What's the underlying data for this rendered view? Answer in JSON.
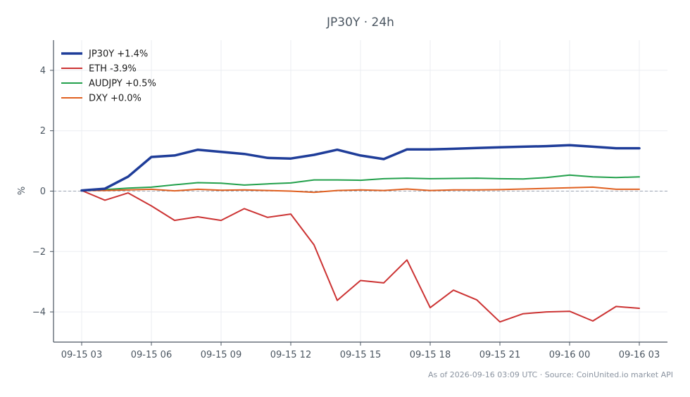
{
  "chart_data": {
    "type": "line",
    "title": "JP30Y · 24h",
    "ylabel": "%",
    "xlabel": "",
    "ylim": [
      -5,
      5
    ],
    "yticks": [
      -4,
      -2,
      0,
      2,
      4
    ],
    "ytick_labels": [
      "−4",
      "−2",
      "0",
      "2",
      "4"
    ],
    "xtick_labels": [
      "09-15 03",
      "09-15 06",
      "09-15 09",
      "09-15 12",
      "09-15 15",
      "09-15 18",
      "09-15 21",
      "09-16 00",
      "09-16 03"
    ],
    "x": [
      "09-15 03",
      "09-15 04",
      "09-15 05",
      "09-15 06",
      "09-15 07",
      "09-15 08",
      "09-15 09",
      "09-15 10",
      "09-15 11",
      "09-15 12",
      "09-15 13",
      "09-15 14",
      "09-15 15",
      "09-15 16",
      "09-15 17",
      "09-15 18",
      "09-15 19",
      "09-15 20",
      "09-15 21",
      "09-15 22",
      "09-15 23",
      "09-16 00",
      "09-16 01",
      "09-16 02",
      "09-16 03"
    ],
    "grid": true,
    "legend_position": "top-left",
    "reference_line": 0,
    "series": [
      {
        "name": "JP30Y +1.4%",
        "color": "#1f3d99",
        "width": 3.5,
        "values": [
          0.02,
          0.08,
          0.48,
          1.13,
          1.18,
          1.37,
          1.3,
          1.23,
          1.1,
          1.08,
          1.2,
          1.37,
          1.18,
          1.06,
          1.38,
          1.38,
          1.4,
          1.43,
          1.45,
          1.47,
          1.49,
          1.52,
          1.47,
          1.42,
          1.42
        ]
      },
      {
        "name": "ETH -3.9%",
        "color": "#cc3333",
        "width": 2,
        "values": [
          0.02,
          -0.3,
          -0.06,
          -0.49,
          -0.97,
          -0.85,
          -0.97,
          -0.58,
          -0.87,
          -0.76,
          -1.78,
          -3.62,
          -2.96,
          -3.04,
          -2.28,
          -3.86,
          -3.28,
          -3.6,
          -4.33,
          -4.06,
          -4.0,
          -3.98,
          -4.3,
          -3.82,
          -3.88
        ]
      },
      {
        "name": "AUDJPY +0.5%",
        "color": "#22a04b",
        "width": 2,
        "values": [
          0.02,
          0.05,
          0.1,
          0.13,
          0.21,
          0.28,
          0.26,
          0.2,
          0.24,
          0.27,
          0.37,
          0.37,
          0.36,
          0.41,
          0.43,
          0.41,
          0.42,
          0.43,
          0.41,
          0.4,
          0.45,
          0.53,
          0.47,
          0.45,
          0.47
        ]
      },
      {
        "name": "DXY +0.0%",
        "color": "#e06020",
        "width": 2,
        "values": [
          0.02,
          0.02,
          0.04,
          0.06,
          0.01,
          0.06,
          0.03,
          0.04,
          0.02,
          0.0,
          -0.04,
          0.02,
          0.04,
          0.02,
          0.07,
          0.02,
          0.04,
          0.04,
          0.05,
          0.07,
          0.09,
          0.11,
          0.13,
          0.06,
          0.06
        ]
      }
    ]
  },
  "footer": {
    "asof": "As of 2026-09-16 03:09 UTC",
    "separator": " · ",
    "source": "Source: CoinUnited.io market API"
  }
}
